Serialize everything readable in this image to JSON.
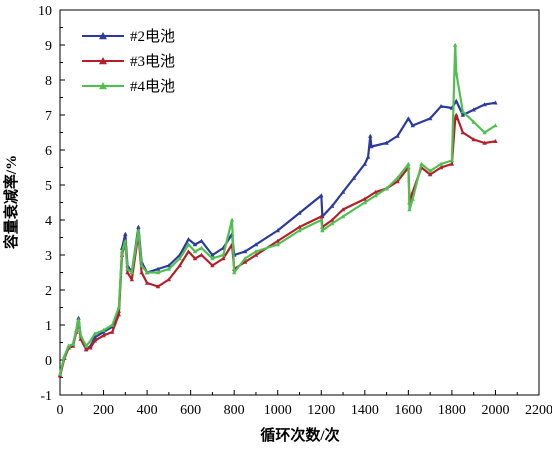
{
  "chart_data": {
    "type": "line",
    "title": "",
    "xlabel": "循环次数/次",
    "ylabel": "容量衰减率/%",
    "xlim": [
      0,
      2200
    ],
    "ylim": [
      -1,
      10
    ],
    "x_ticks": [
      "0",
      "200",
      "400",
      "600",
      "800",
      "1000",
      "1200",
      "1400",
      "1600",
      "1800",
      "2000",
      "2200"
    ],
    "y_ticks": [
      "-1",
      "0",
      "1",
      "2",
      "3",
      "4",
      "5",
      "6",
      "7",
      "8",
      "9",
      "10"
    ],
    "grid": false,
    "legend_position": "top-left",
    "series": [
      {
        "name": "#2电池",
        "color": "#2b3a9c",
        "marker": "triangle",
        "points": [
          [
            0,
            -0.45
          ],
          [
            20,
            0.1
          ],
          [
            40,
            0.4
          ],
          [
            60,
            0.45
          ],
          [
            75,
            0.85
          ],
          [
            85,
            1.2
          ],
          [
            95,
            0.7
          ],
          [
            120,
            0.3
          ],
          [
            140,
            0.4
          ],
          [
            160,
            0.65
          ],
          [
            200,
            0.8
          ],
          [
            240,
            0.95
          ],
          [
            270,
            1.4
          ],
          [
            285,
            3.2
          ],
          [
            300,
            3.6
          ],
          [
            310,
            2.7
          ],
          [
            330,
            2.5
          ],
          [
            360,
            3.8
          ],
          [
            375,
            2.8
          ],
          [
            400,
            2.5
          ],
          [
            450,
            2.6
          ],
          [
            500,
            2.7
          ],
          [
            550,
            3.0
          ],
          [
            590,
            3.45
          ],
          [
            620,
            3.3
          ],
          [
            650,
            3.4
          ],
          [
            700,
            3.0
          ],
          [
            750,
            3.2
          ],
          [
            790,
            3.6
          ],
          [
            800,
            3.0
          ],
          [
            850,
            3.1
          ],
          [
            900,
            3.3
          ],
          [
            1000,
            3.7
          ],
          [
            1100,
            4.2
          ],
          [
            1200,
            4.7
          ],
          [
            1205,
            4.1
          ],
          [
            1250,
            4.4
          ],
          [
            1300,
            4.8
          ],
          [
            1350,
            5.2
          ],
          [
            1400,
            5.6
          ],
          [
            1415,
            5.8
          ],
          [
            1425,
            6.4
          ],
          [
            1430,
            6.1
          ],
          [
            1500,
            6.2
          ],
          [
            1550,
            6.4
          ],
          [
            1600,
            6.9
          ],
          [
            1620,
            6.7
          ],
          [
            1700,
            6.9
          ],
          [
            1750,
            7.25
          ],
          [
            1800,
            7.2
          ],
          [
            1820,
            7.4
          ],
          [
            1850,
            7.0
          ],
          [
            1900,
            7.15
          ],
          [
            1950,
            7.3
          ],
          [
            2000,
            7.35
          ]
        ]
      },
      {
        "name": "#3电池",
        "color": "#b21f2a",
        "marker": "triangle",
        "points": [
          [
            0,
            -0.45
          ],
          [
            20,
            0.05
          ],
          [
            40,
            0.35
          ],
          [
            60,
            0.4
          ],
          [
            75,
            0.8
          ],
          [
            85,
            1.1
          ],
          [
            95,
            0.6
          ],
          [
            120,
            0.3
          ],
          [
            140,
            0.35
          ],
          [
            160,
            0.55
          ],
          [
            200,
            0.7
          ],
          [
            240,
            0.8
          ],
          [
            270,
            1.3
          ],
          [
            285,
            3.0
          ],
          [
            300,
            3.4
          ],
          [
            310,
            2.5
          ],
          [
            330,
            2.3
          ],
          [
            360,
            3.6
          ],
          [
            375,
            2.5
          ],
          [
            400,
            2.2
          ],
          [
            450,
            2.1
          ],
          [
            500,
            2.3
          ],
          [
            550,
            2.7
          ],
          [
            590,
            3.1
          ],
          [
            620,
            2.9
          ],
          [
            650,
            3.0
          ],
          [
            700,
            2.7
          ],
          [
            750,
            2.9
          ],
          [
            790,
            3.3
          ],
          [
            800,
            2.6
          ],
          [
            850,
            2.8
          ],
          [
            900,
            3.0
          ],
          [
            1000,
            3.4
          ],
          [
            1100,
            3.8
          ],
          [
            1200,
            4.1
          ],
          [
            1205,
            3.8
          ],
          [
            1250,
            4.0
          ],
          [
            1300,
            4.3
          ],
          [
            1400,
            4.6
          ],
          [
            1450,
            4.8
          ],
          [
            1500,
            4.9
          ],
          [
            1550,
            5.1
          ],
          [
            1600,
            5.5
          ],
          [
            1605,
            4.5
          ],
          [
            1620,
            4.8
          ],
          [
            1660,
            5.5
          ],
          [
            1700,
            5.3
          ],
          [
            1750,
            5.5
          ],
          [
            1800,
            5.6
          ],
          [
            1815,
            6.9
          ],
          [
            1820,
            7.0
          ],
          [
            1850,
            6.5
          ],
          [
            1900,
            6.3
          ],
          [
            1950,
            6.2
          ],
          [
            2000,
            6.25
          ]
        ]
      },
      {
        "name": "#4电池",
        "color": "#4fc04f",
        "marker": "triangle",
        "points": [
          [
            0,
            -0.4
          ],
          [
            20,
            0.1
          ],
          [
            40,
            0.4
          ],
          [
            60,
            0.45
          ],
          [
            75,
            0.85
          ],
          [
            85,
            1.15
          ],
          [
            95,
            0.7
          ],
          [
            120,
            0.4
          ],
          [
            140,
            0.55
          ],
          [
            160,
            0.75
          ],
          [
            200,
            0.85
          ],
          [
            240,
            1.0
          ],
          [
            270,
            1.5
          ],
          [
            285,
            3.1
          ],
          [
            300,
            3.4
          ],
          [
            310,
            2.6
          ],
          [
            330,
            2.5
          ],
          [
            360,
            3.7
          ],
          [
            375,
            2.7
          ],
          [
            400,
            2.5
          ],
          [
            450,
            2.5
          ],
          [
            500,
            2.6
          ],
          [
            550,
            2.9
          ],
          [
            590,
            3.3
          ],
          [
            620,
            3.1
          ],
          [
            650,
            3.2
          ],
          [
            700,
            2.9
          ],
          [
            750,
            3.0
          ],
          [
            790,
            4.0
          ],
          [
            800,
            2.5
          ],
          [
            850,
            2.9
          ],
          [
            900,
            3.1
          ],
          [
            1000,
            3.3
          ],
          [
            1100,
            3.7
          ],
          [
            1200,
            4.0
          ],
          [
            1205,
            3.7
          ],
          [
            1250,
            3.9
          ],
          [
            1300,
            4.1
          ],
          [
            1400,
            4.5
          ],
          [
            1450,
            4.7
          ],
          [
            1500,
            4.9
          ],
          [
            1550,
            5.2
          ],
          [
            1600,
            5.6
          ],
          [
            1605,
            4.3
          ],
          [
            1620,
            4.6
          ],
          [
            1660,
            5.6
          ],
          [
            1700,
            5.4
          ],
          [
            1750,
            5.6
          ],
          [
            1800,
            5.7
          ],
          [
            1815,
            9.0
          ],
          [
            1820,
            8.2
          ],
          [
            1850,
            7.1
          ],
          [
            1900,
            6.8
          ],
          [
            1950,
            6.5
          ],
          [
            2000,
            6.7
          ]
        ]
      }
    ]
  }
}
